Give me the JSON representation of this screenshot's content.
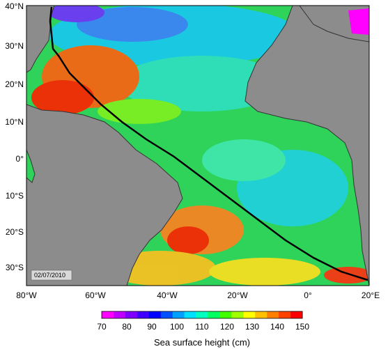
{
  "map": {
    "date_label": "02/07/2010",
    "lat_ticks": [
      "40°N",
      "30°N",
      "20°N",
      "10°N",
      "0°",
      "10°S",
      "20°S",
      "30°S"
    ],
    "lon_ticks": [
      "80°W",
      "60°W",
      "40°W",
      "20°W",
      "0°",
      "20°E"
    ],
    "lon_range": [
      -80,
      20
    ],
    "lat_range": [
      -35,
      40
    ]
  },
  "colorbar": {
    "title": "Sea surface height (cm)",
    "min": 70,
    "max": 150,
    "tick_labels": [
      "70",
      "80",
      "90",
      "100",
      "110",
      "120",
      "130",
      "140",
      "150"
    ],
    "colors": [
      "#ff00ff",
      "#c000ff",
      "#8000ff",
      "#4000ff",
      "#0000ff",
      "#0050ff",
      "#00a0ff",
      "#00e0ff",
      "#00ffc0",
      "#00ff60",
      "#40ff00",
      "#a0ff00",
      "#ffff00",
      "#ffc000",
      "#ff8000",
      "#ff4000",
      "#ff0000"
    ]
  },
  "colors": {
    "land": "#8c8c8c",
    "coast": "#333333",
    "track": "#000000"
  }
}
